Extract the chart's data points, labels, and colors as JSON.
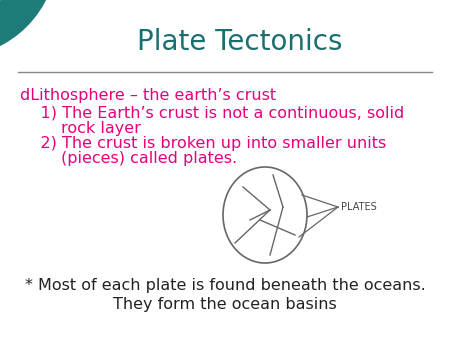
{
  "title": "Plate Tectonics",
  "title_color": "#1a7070",
  "title_fontsize": 20,
  "background_color": "#ffffff",
  "line_color": "#888888",
  "heading_text": "dLithosphere – the earth’s crust",
  "heading_color": "#e6007e",
  "heading_fontsize": 11.5,
  "point1_line1": "    1) The Earth’s crust is not a continuous, solid",
  "point1_line2": "        rock layer",
  "point2_line1": "    2) The crust is broken up into smaller units",
  "point2_line2": "        (pieces) called plates.",
  "points_color": "#e6007e",
  "points_fontsize": 11.5,
  "footer1": "* Most of each plate is found beneath the oceans.",
  "footer2": "They form the ocean basins",
  "footer_color": "#222222",
  "footer_fontsize": 11.5,
  "plates_label": "PLATES",
  "plates_label_color": "#444444",
  "plates_label_fontsize": 7,
  "diagram_color": "#666666",
  "teal_outer_color": "#1d7b78",
  "teal_inner_color": "#4ab0aa"
}
